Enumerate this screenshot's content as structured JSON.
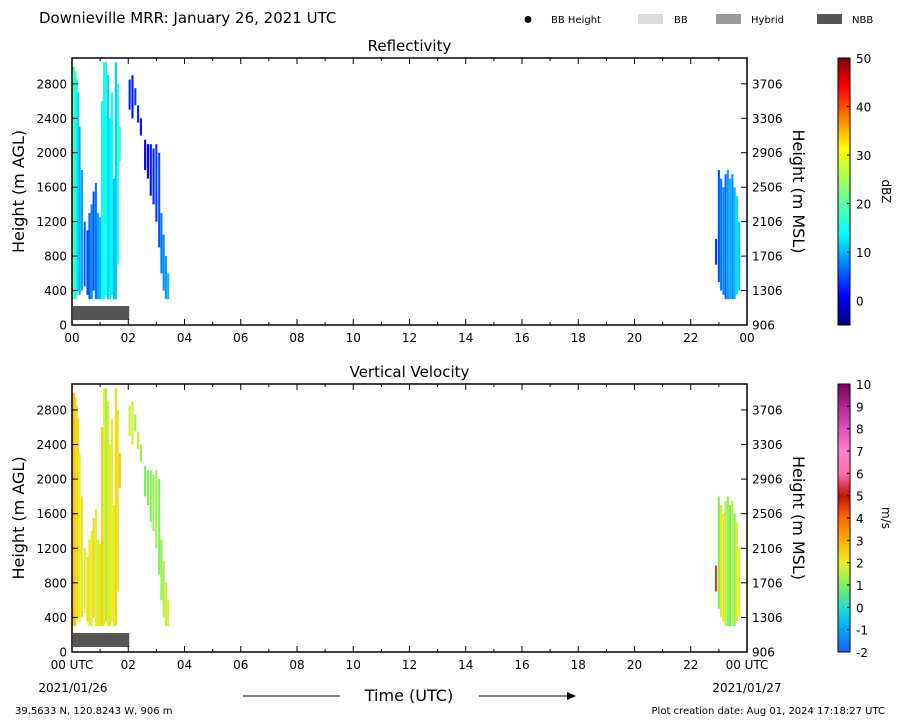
{
  "header": {
    "title": "Downieville MRR:  January 26, 2021 UTC",
    "legend": [
      {
        "label": "BB Height",
        "symbol": "dot",
        "color": "#000000"
      },
      {
        "label": "BB",
        "symbol": "box",
        "color": "#dcdcdc"
      },
      {
        "label": "Hybrid",
        "symbol": "box",
        "color": "#9a9a9a"
      },
      {
        "label": "NBB",
        "symbol": "box",
        "color": "#555555"
      }
    ]
  },
  "footer": {
    "location": "39.5633 N, 120.8243 W, 906 m",
    "created": "Plot creation date: Aug 01, 2024 17:18:27 UTC",
    "time_label": "Time (UTC)",
    "start_date": "2021/01/26",
    "end_date": "2021/01/27"
  },
  "chart_data": [
    {
      "type": "heatmap",
      "title": "Reflectivity",
      "xlabel": "",
      "ylabel": "Height (m AGL)",
      "ylabel_right": "Height (m MSL)",
      "xlim": [
        0,
        24
      ],
      "ylim": [
        0,
        3100
      ],
      "xticks": [
        "00",
        "02",
        "04",
        "06",
        "08",
        "10",
        "12",
        "14",
        "16",
        "18",
        "20",
        "22",
        "00"
      ],
      "yticks": [
        0,
        400,
        800,
        1200,
        1600,
        2000,
        2400,
        2800
      ],
      "yticks_right": [
        "906",
        "1306",
        "1706",
        "2106",
        "2506",
        "2906",
        "3306",
        "3706"
      ],
      "colorbar": {
        "label": "dBZ",
        "min": -5,
        "max": 50,
        "ticks": [
          0,
          10,
          20,
          30,
          40,
          50
        ]
      },
      "nbb_bar": [
        0.0,
        2.0
      ],
      "columns": [
        {
          "t": 0.02,
          "y0": 300,
          "y1": 3000,
          "v": 18
        },
        {
          "t": 0.07,
          "y0": 300,
          "y1": 3000,
          "v": 20
        },
        {
          "t": 0.12,
          "y0": 300,
          "y1": 2950,
          "v": 16
        },
        {
          "t": 0.17,
          "y0": 350,
          "y1": 2850,
          "v": 14
        },
        {
          "t": 0.22,
          "y0": 400,
          "y1": 2700,
          "v": 12
        },
        {
          "t": 0.27,
          "y0": 350,
          "y1": 2300,
          "v": 10
        },
        {
          "t": 0.35,
          "y0": 400,
          "y1": 1800,
          "v": 9
        },
        {
          "t": 0.45,
          "y0": 450,
          "y1": 1200,
          "v": 6
        },
        {
          "t": 0.55,
          "y0": 350,
          "y1": 1100,
          "v": 5
        },
        {
          "t": 0.62,
          "y0": 300,
          "y1": 1300,
          "v": 6
        },
        {
          "t": 0.7,
          "y0": 300,
          "y1": 1400,
          "v": 8
        },
        {
          "t": 0.77,
          "y0": 400,
          "y1": 1550,
          "v": 5
        },
        {
          "t": 0.85,
          "y0": 300,
          "y1": 1650,
          "v": 7
        },
        {
          "t": 0.92,
          "y0": 300,
          "y1": 1300,
          "v": 9
        },
        {
          "t": 1.0,
          "y0": 300,
          "y1": 1250,
          "v": 10
        },
        {
          "t": 1.07,
          "y0": 300,
          "y1": 2600,
          "v": 14
        },
        {
          "t": 1.14,
          "y0": 300,
          "y1": 3050,
          "v": 15
        },
        {
          "t": 1.21,
          "y0": 350,
          "y1": 3050,
          "v": 16
        },
        {
          "t": 1.28,
          "y0": 300,
          "y1": 2900,
          "v": 12
        },
        {
          "t": 1.35,
          "y0": 300,
          "y1": 2400,
          "v": 13
        },
        {
          "t": 1.42,
          "y0": 350,
          "y1": 2700,
          "v": 14
        },
        {
          "t": 1.49,
          "y0": 300,
          "y1": 1700,
          "v": 10
        },
        {
          "t": 1.56,
          "y0": 300,
          "y1": 3050,
          "v": 11
        },
        {
          "t": 1.63,
          "y0": 700,
          "y1": 2800,
          "v": 16
        },
        {
          "t": 1.7,
          "y0": 1900,
          "y1": 2300,
          "v": 18
        },
        {
          "t": 2.05,
          "y0": 2500,
          "y1": 2850,
          "v": 3
        },
        {
          "t": 2.15,
          "y0": 2400,
          "y1": 2900,
          "v": 2
        },
        {
          "t": 2.25,
          "y0": 2550,
          "y1": 2750,
          "v": 4
        },
        {
          "t": 2.35,
          "y0": 2350,
          "y1": 2550,
          "v": 3
        },
        {
          "t": 2.45,
          "y0": 2200,
          "y1": 2400,
          "v": 2
        },
        {
          "t": 2.6,
          "y0": 1800,
          "y1": 2150,
          "v": 0
        },
        {
          "t": 2.7,
          "y0": 1700,
          "y1": 2100,
          "v": 1
        },
        {
          "t": 2.8,
          "y0": 1500,
          "y1": 2100,
          "v": 2
        },
        {
          "t": 2.9,
          "y0": 1400,
          "y1": 2050,
          "v": 3
        },
        {
          "t": 3.0,
          "y0": 1200,
          "y1": 2100,
          "v": 4
        },
        {
          "t": 3.1,
          "y0": 900,
          "y1": 2000,
          "v": 5
        },
        {
          "t": 3.18,
          "y0": 600,
          "y1": 1300,
          "v": 7
        },
        {
          "t": 3.26,
          "y0": 400,
          "y1": 1050,
          "v": 8
        },
        {
          "t": 3.34,
          "y0": 300,
          "y1": 800,
          "v": 9
        },
        {
          "t": 3.42,
          "y0": 300,
          "y1": 600,
          "v": 10
        },
        {
          "t": 22.9,
          "y0": 700,
          "y1": 1000,
          "v": 4
        },
        {
          "t": 23.0,
          "y0": 500,
          "y1": 1800,
          "v": 5
        },
        {
          "t": 23.08,
          "y0": 400,
          "y1": 1700,
          "v": 7
        },
        {
          "t": 23.16,
          "y0": 350,
          "y1": 1600,
          "v": 8
        },
        {
          "t": 23.24,
          "y0": 300,
          "y1": 1750,
          "v": 6
        },
        {
          "t": 23.32,
          "y0": 300,
          "y1": 1800,
          "v": 9
        },
        {
          "t": 23.4,
          "y0": 300,
          "y1": 1700,
          "v": 10
        },
        {
          "t": 23.48,
          "y0": 300,
          "y1": 1750,
          "v": 8
        },
        {
          "t": 23.56,
          "y0": 300,
          "y1": 1600,
          "v": 10
        },
        {
          "t": 23.64,
          "y0": 350,
          "y1": 1500,
          "v": 12
        },
        {
          "t": 23.72,
          "y0": 400,
          "y1": 1200,
          "v": 11
        }
      ]
    },
    {
      "type": "heatmap",
      "title": "Vertical Velocity",
      "xlabel": "Time (UTC)",
      "ylabel": "Height (m AGL)",
      "ylabel_right": "Height (m MSL)",
      "xlim": [
        0,
        24
      ],
      "ylim": [
        0,
        3100
      ],
      "xticks": [
        "00 UTC",
        "02",
        "04",
        "06",
        "08",
        "10",
        "12",
        "14",
        "16",
        "18",
        "20",
        "22",
        "00 UTC"
      ],
      "yticks": [
        0,
        400,
        800,
        1200,
        1600,
        2000,
        2400,
        2800
      ],
      "yticks_right": [
        "906",
        "1306",
        "1706",
        "2106",
        "2506",
        "2906",
        "3306",
        "3706"
      ],
      "colorbar": {
        "label": "m/s",
        "min": -2,
        "max": 10,
        "ticks": [
          -2,
          -1,
          0,
          1,
          2,
          3,
          4,
          5,
          6,
          7,
          8,
          9,
          10
        ]
      },
      "nbb_bar": [
        0.0,
        2.0
      ],
      "columns": [
        {
          "t": 0.02,
          "y0": 300,
          "y1": 3000,
          "v": 2.6
        },
        {
          "t": 0.07,
          "y0": 300,
          "y1": 3000,
          "v": 2.8
        },
        {
          "t": 0.12,
          "y0": 300,
          "y1": 2950,
          "v": 2.5
        },
        {
          "t": 0.17,
          "y0": 350,
          "y1": 2850,
          "v": 2.2
        },
        {
          "t": 0.22,
          "y0": 400,
          "y1": 2700,
          "v": 2.4
        },
        {
          "t": 0.27,
          "y0": 350,
          "y1": 2300,
          "v": 2.0
        },
        {
          "t": 0.35,
          "y0": 400,
          "y1": 1800,
          "v": 2.2
        },
        {
          "t": 0.45,
          "y0": 450,
          "y1": 1200,
          "v": 1.8
        },
        {
          "t": 0.55,
          "y0": 350,
          "y1": 1100,
          "v": 2.3
        },
        {
          "t": 0.62,
          "y0": 300,
          "y1": 1300,
          "v": 2.1
        },
        {
          "t": 0.7,
          "y0": 300,
          "y1": 1400,
          "v": 1.9
        },
        {
          "t": 0.77,
          "y0": 400,
          "y1": 1550,
          "v": 2.4
        },
        {
          "t": 0.85,
          "y0": 300,
          "y1": 1650,
          "v": 2.0
        },
        {
          "t": 0.92,
          "y0": 300,
          "y1": 1300,
          "v": 1.7
        },
        {
          "t": 1.0,
          "y0": 300,
          "y1": 1250,
          "v": 2.2
        },
        {
          "t": 1.07,
          "y0": 300,
          "y1": 2600,
          "v": 2.5
        },
        {
          "t": 1.14,
          "y0": 300,
          "y1": 3050,
          "v": 2.0
        },
        {
          "t": 1.21,
          "y0": 350,
          "y1": 3050,
          "v": 1.4
        },
        {
          "t": 1.28,
          "y0": 300,
          "y1": 2900,
          "v": 1.8
        },
        {
          "t": 1.35,
          "y0": 300,
          "y1": 2400,
          "v": 2.2
        },
        {
          "t": 1.42,
          "y0": 350,
          "y1": 2700,
          "v": 2.0
        },
        {
          "t": 1.49,
          "y0": 300,
          "y1": 1700,
          "v": 1.9
        },
        {
          "t": 1.56,
          "y0": 300,
          "y1": 3050,
          "v": 2.4
        },
        {
          "t": 1.63,
          "y0": 700,
          "y1": 2800,
          "v": 2.1
        },
        {
          "t": 1.7,
          "y0": 1900,
          "y1": 2300,
          "v": 2.6
        },
        {
          "t": 2.05,
          "y0": 2500,
          "y1": 2850,
          "v": 1.6
        },
        {
          "t": 2.15,
          "y0": 2400,
          "y1": 2900,
          "v": 1.8
        },
        {
          "t": 2.25,
          "y0": 2550,
          "y1": 2750,
          "v": 1.4
        },
        {
          "t": 2.35,
          "y0": 2350,
          "y1": 2550,
          "v": 1.6
        },
        {
          "t": 2.45,
          "y0": 2200,
          "y1": 2400,
          "v": 1.2
        },
        {
          "t": 2.6,
          "y0": 1800,
          "y1": 2150,
          "v": 0.9
        },
        {
          "t": 2.7,
          "y0": 1700,
          "y1": 2100,
          "v": 1.1
        },
        {
          "t": 2.8,
          "y0": 1500,
          "y1": 2100,
          "v": 1.0
        },
        {
          "t": 2.9,
          "y0": 1400,
          "y1": 2050,
          "v": 1.2
        },
        {
          "t": 3.0,
          "y0": 1200,
          "y1": 2100,
          "v": 1.3
        },
        {
          "t": 3.1,
          "y0": 900,
          "y1": 2000,
          "v": 1.0
        },
        {
          "t": 3.18,
          "y0": 600,
          "y1": 1300,
          "v": 1.2
        },
        {
          "t": 3.26,
          "y0": 400,
          "y1": 1050,
          "v": 1.5
        },
        {
          "t": 3.34,
          "y0": 300,
          "y1": 800,
          "v": 1.7
        },
        {
          "t": 3.42,
          "y0": 300,
          "y1": 600,
          "v": 1.8
        },
        {
          "t": 22.9,
          "y0": 700,
          "y1": 1000,
          "v": 4.5
        },
        {
          "t": 23.0,
          "y0": 500,
          "y1": 1800,
          "v": 1.0
        },
        {
          "t": 23.08,
          "y0": 400,
          "y1": 1700,
          "v": 1.8
        },
        {
          "t": 23.16,
          "y0": 350,
          "y1": 1600,
          "v": 2.2
        },
        {
          "t": 23.24,
          "y0": 300,
          "y1": 1750,
          "v": 1.5
        },
        {
          "t": 23.32,
          "y0": 300,
          "y1": 1800,
          "v": 1.2
        },
        {
          "t": 23.4,
          "y0": 300,
          "y1": 1700,
          "v": 0.8
        },
        {
          "t": 23.48,
          "y0": 300,
          "y1": 1750,
          "v": 1.6
        },
        {
          "t": 23.56,
          "y0": 300,
          "y1": 1600,
          "v": 1.0
        },
        {
          "t": 23.64,
          "y0": 350,
          "y1": 1500,
          "v": 1.9
        },
        {
          "t": 23.72,
          "y0": 400,
          "y1": 1200,
          "v": 2.1
        }
      ]
    }
  ]
}
